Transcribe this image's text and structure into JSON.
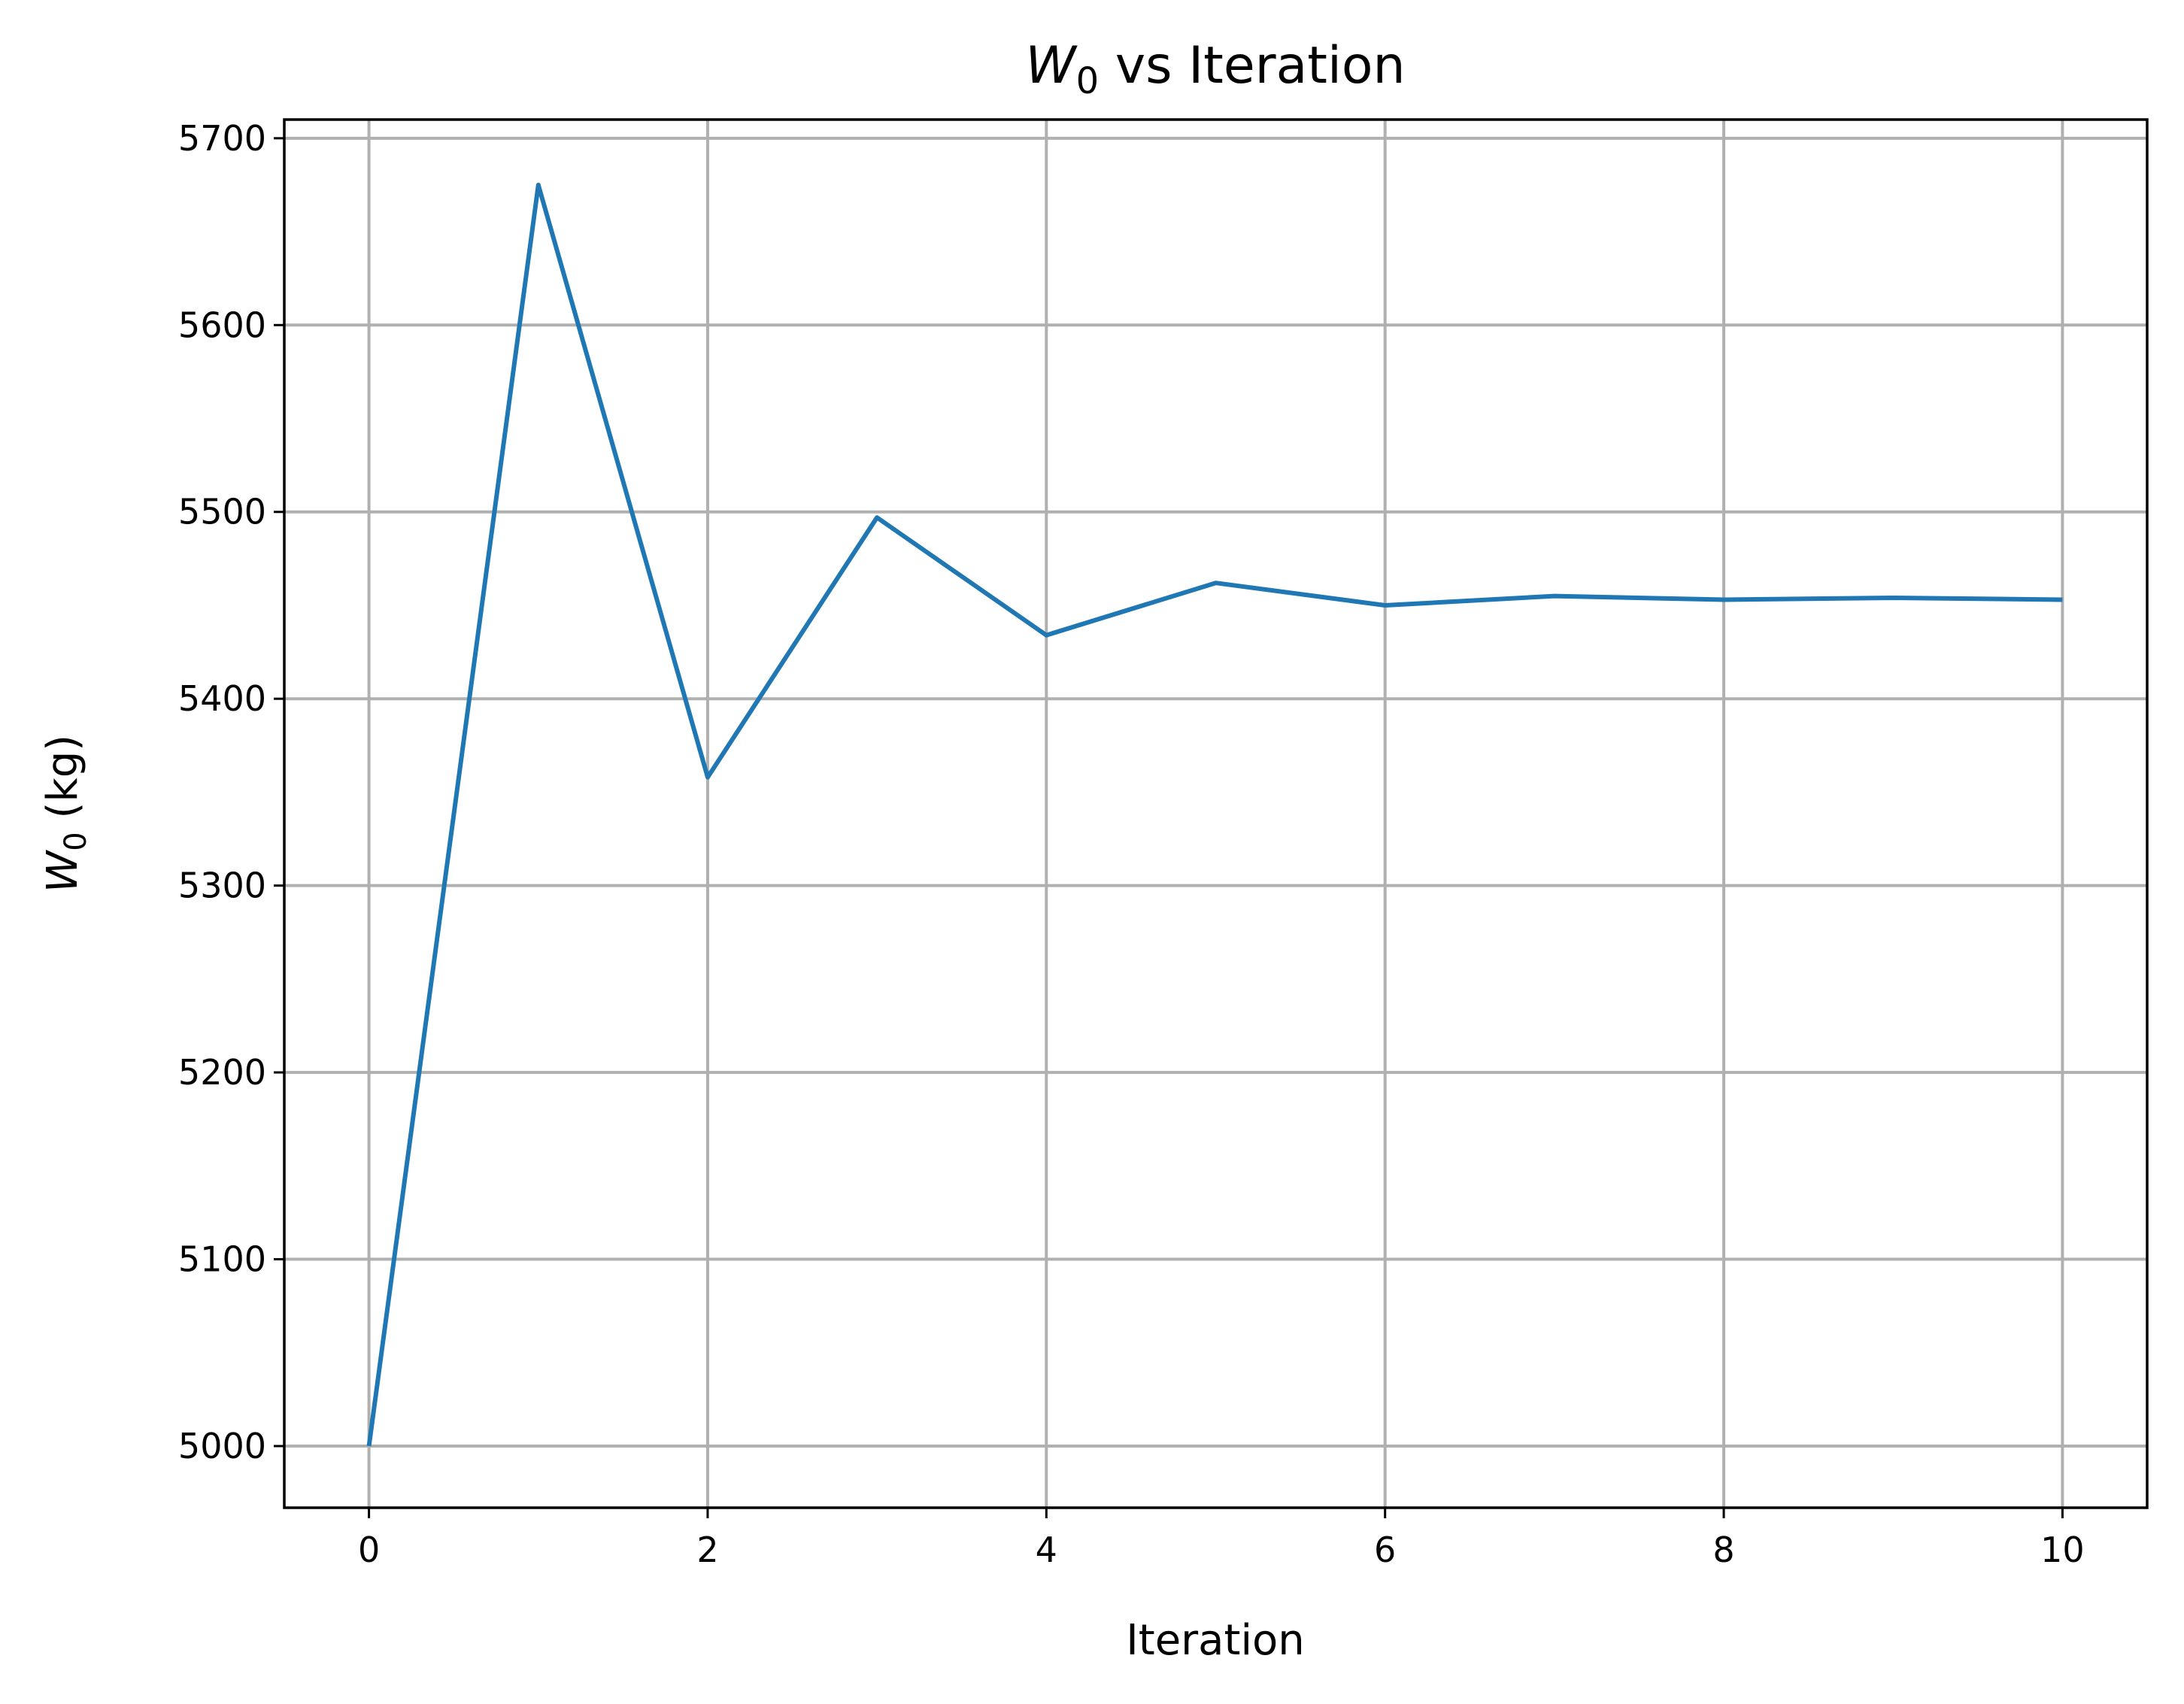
{
  "chart_data": {
    "type": "line",
    "title_main": "W",
    "title_sub": "0",
    "title_rest": " vs Iteration",
    "xlabel": "Iteration",
    "ylabel_main": "W",
    "ylabel_sub": "0",
    "ylabel_rest": " (kg)",
    "xlim": [
      -0.5,
      10.5
    ],
    "ylim": [
      4967,
      5710
    ],
    "xticks": [
      0,
      2,
      4,
      6,
      8,
      10
    ],
    "yticks": [
      5000,
      5100,
      5200,
      5300,
      5400,
      5500,
      5600,
      5700
    ],
    "grid": true,
    "series": [
      {
        "color": "#1f77b4",
        "x": [
          0,
          1,
          2,
          3,
          4,
          5,
          6,
          7,
          8,
          9,
          10
        ],
        "y": [
          5000,
          5675,
          5358,
          5497,
          5434,
          5462,
          5450,
          5455,
          5453,
          5454,
          5453
        ]
      }
    ]
  }
}
